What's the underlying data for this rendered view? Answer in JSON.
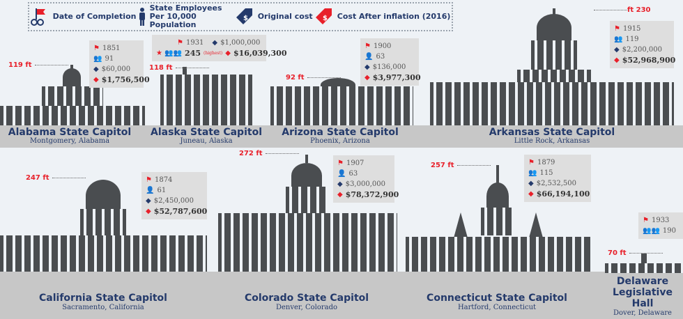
{
  "legend": {
    "completion": "Date of Completion",
    "employees": "State Employees Per 10,000 Population",
    "original": "Original cost",
    "inflation": "Cost After inflation (2016)"
  },
  "colors": {
    "navy": "#243a6b",
    "red": "#e8202a",
    "building": "#4a4d50",
    "band": "#c7c7c7"
  },
  "capitols": [
    {
      "name": "Alabama State Capitol",
      "location": "Montgomery, Alabama",
      "height": "119 ft",
      "year": "1851",
      "employees": "91",
      "original": "$60,000",
      "inflated": "$1,756,500"
    },
    {
      "name": "Alaska State Capitol",
      "location": "Juneau, Alaska",
      "height": "118 ft",
      "year": "1931",
      "employees": "245",
      "employees_note": "(highest)",
      "original": "$1,000,000",
      "inflated": "$16,039,300"
    },
    {
      "name": "Arizona State Capitol",
      "location": "Phoenix, Arizona",
      "height": "92 ft",
      "year": "1900",
      "employees": "63",
      "original": "$136,000",
      "inflated": "$3,977,300"
    },
    {
      "name": "Arkansas State Capitol",
      "location": "Little Rock, Arkansas",
      "height": "230 ft",
      "year": "1915",
      "employees": "119",
      "original": "$2,200,000",
      "inflated": "$52,968,900"
    },
    {
      "name": "California State Capitol",
      "location": "Sacramento, California",
      "height": "247 ft",
      "year": "1874",
      "employees": "61",
      "original": "$2,450,000",
      "inflated": "$52,787,600"
    },
    {
      "name": "Colorado State Capitol",
      "location": "Denver, Colorado",
      "height": "272 ft",
      "year": "1907",
      "employees": "63",
      "original": "$3,000,000",
      "inflated": "$78,372,900"
    },
    {
      "name": "Connecticut State Capitol",
      "location": "Hartford, Connecticut",
      "height": "257 ft",
      "year": "1879",
      "employees": "115",
      "original": "$2,532,500",
      "inflated": "$66,194,100"
    },
    {
      "name": "Delaware Legislative Hall",
      "location": "Dover, Delaware",
      "height": "70 ft",
      "year": "1933",
      "employees": "190"
    }
  ]
}
